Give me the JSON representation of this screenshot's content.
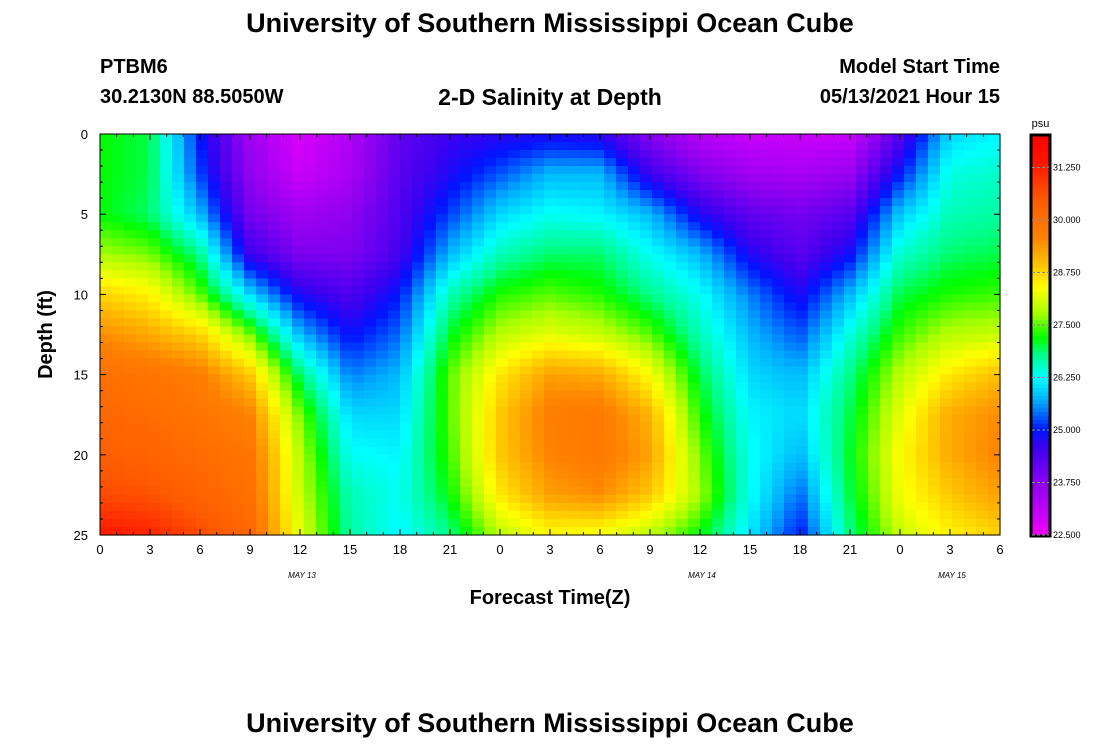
{
  "header": {
    "title": "University of Southern Mississippi Ocean Cube",
    "station_id": "PTBM6",
    "station_coords": "30.2130N  88.5050W",
    "plot_title": "2-D Salinity at Depth",
    "model_label": "Model Start Time",
    "model_time": "05/13/2021 Hour 15"
  },
  "footer": {
    "title": "University of Southern Mississippi Ocean Cube"
  },
  "chart_data": {
    "type": "heatmap",
    "title": "2-D Salinity at Depth",
    "xlabel": "Forecast Time(Z)",
    "ylabel": "Depth (ft)",
    "x_tick_labels": [
      "0",
      "3",
      "6",
      "9",
      "12",
      "15",
      "18",
      "21",
      "0",
      "3",
      "6",
      "9",
      "12",
      "15",
      "18",
      "21",
      "0",
      "3",
      "6"
    ],
    "x_range_hours": [
      0,
      54
    ],
    "date_labels": [
      {
        "label": "MAY 13",
        "hour": 12
      },
      {
        "label": "MAY 14",
        "hour": 36
      },
      {
        "label": "MAY 15",
        "hour": 51
      }
    ],
    "y_ticks": [
      0,
      5,
      10,
      15,
      20,
      25
    ],
    "y_range_ft": [
      0,
      25
    ],
    "y_inverted": true,
    "colorbar": {
      "unit": "psu",
      "range": [
        22.5,
        32.0
      ],
      "tick_values": [
        31.25,
        30.0,
        28.75,
        27.5,
        26.25,
        25.0,
        23.75,
        22.5
      ],
      "tick_labels": [
        "31.250",
        "30.000",
        "28.750",
        "27.500",
        "26.250",
        "25.000",
        "23.750",
        "22.500"
      ],
      "colormap": "rainbow (magenta-blue-cyan-green-yellow-orange-red)",
      "position": "right"
    },
    "grid_description": "salinity (psu) at hour (columns, 0-54 step 3) x depth ft (rows, 0-25 step 2.5)",
    "hours": [
      0,
      3,
      6,
      9,
      12,
      15,
      18,
      21,
      24,
      27,
      30,
      33,
      36,
      39,
      42,
      45,
      48,
      51,
      54
    ],
    "depths": [
      0,
      2.5,
      5,
      7.5,
      10,
      12.5,
      15,
      17.5,
      20,
      22.5,
      25
    ],
    "values": [
      [
        27.2,
        27.0,
        25.0,
        23.5,
        22.8,
        23.3,
        24.2,
        24.6,
        24.7,
        24.8,
        24.7,
        23.8,
        23.2,
        23.0,
        23.0,
        23.0,
        24.3,
        26.0,
        26.2
      ],
      [
        27.2,
        27.0,
        25.2,
        23.7,
        23.0,
        23.4,
        24.3,
        24.8,
        25.3,
        25.8,
        25.8,
        24.6,
        23.9,
        23.5,
        23.4,
        23.6,
        25.0,
        26.4,
        26.5
      ],
      [
        27.2,
        26.9,
        25.8,
        24.0,
        23.5,
        23.7,
        24.4,
        25.2,
        26.0,
        26.3,
        26.2,
        25.8,
        24.8,
        24.2,
        24.0,
        24.3,
        25.9,
        26.6,
        26.7
      ],
      [
        27.8,
        27.6,
        26.8,
        24.6,
        23.9,
        23.9,
        24.5,
        25.8,
        26.6,
        26.9,
        26.9,
        26.3,
        25.8,
        24.8,
        24.3,
        24.9,
        26.5,
        26.9,
        27.0
      ],
      [
        28.8,
        28.5,
        27.5,
        26.0,
        24.8,
        24.4,
        25.0,
        26.6,
        27.3,
        27.5,
        27.3,
        26.8,
        26.3,
        25.5,
        24.8,
        25.8,
        27.0,
        27.3,
        27.4
      ],
      [
        29.5,
        29.2,
        28.8,
        27.6,
        25.8,
        24.9,
        25.4,
        27.1,
        27.9,
        28.2,
        28.0,
        27.5,
        26.6,
        25.8,
        25.3,
        26.4,
        27.4,
        27.9,
        28.0
      ],
      [
        30.0,
        29.9,
        29.7,
        28.9,
        26.9,
        25.5,
        25.8,
        27.5,
        28.6,
        29.3,
        29.2,
        28.4,
        27.0,
        26.0,
        25.8,
        26.8,
        27.9,
        28.6,
        29.0
      ],
      [
        30.2,
        30.1,
        29.9,
        29.6,
        27.6,
        26.0,
        26.0,
        27.5,
        28.9,
        29.7,
        29.8,
        29.1,
        27.3,
        26.2,
        26.0,
        27.0,
        28.2,
        29.2,
        29.5
      ],
      [
        30.4,
        30.3,
        30.1,
        29.9,
        27.9,
        26.3,
        26.2,
        27.4,
        28.9,
        29.6,
        29.8,
        29.3,
        27.6,
        26.3,
        25.8,
        27.1,
        28.4,
        29.2,
        29.6
      ],
      [
        30.7,
        30.6,
        30.3,
        30.0,
        28.0,
        26.6,
        26.3,
        27.2,
        28.6,
        29.3,
        29.5,
        28.9,
        27.8,
        26.3,
        25.4,
        27.0,
        28.3,
        28.9,
        29.3
      ],
      [
        31.4,
        31.2,
        30.7,
        30.2,
        28.2,
        26.7,
        26.2,
        26.8,
        27.9,
        28.4,
        28.3,
        27.9,
        27.2,
        26.1,
        25.0,
        26.8,
        28.0,
        28.5,
        28.8
      ]
    ]
  }
}
